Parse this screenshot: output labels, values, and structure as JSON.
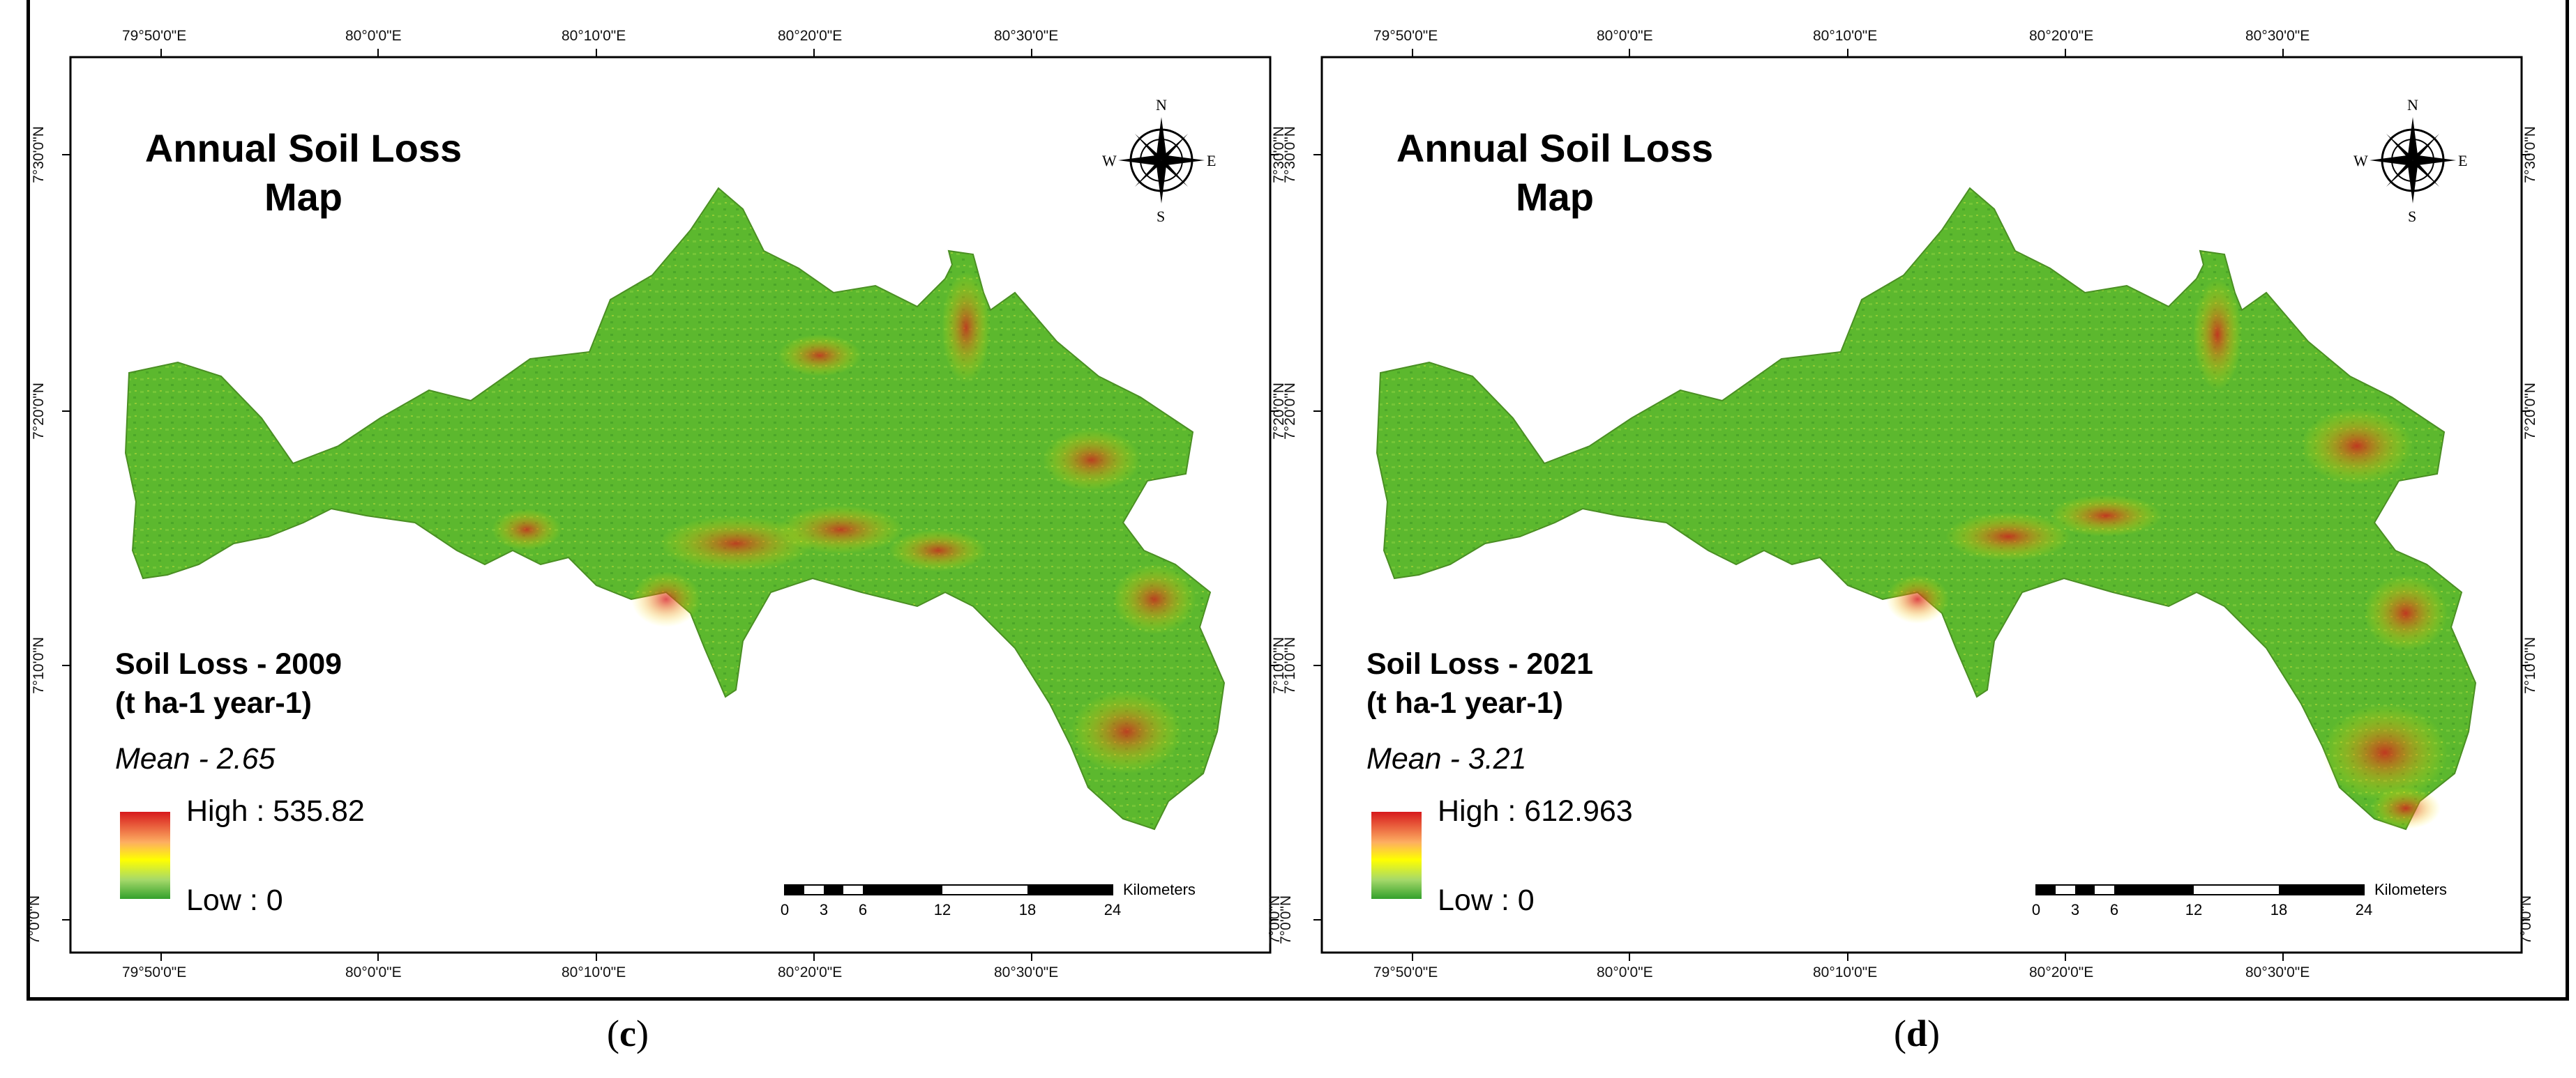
{
  "panels": [
    {
      "label": "c",
      "title_line1": "Annual Soil Loss",
      "title_line2": "Map",
      "legend_title_line1": "Soil Loss - 2009",
      "legend_title_line2": "(t ha-1 year-1)",
      "mean": "Mean - 2.65",
      "high": "High : 535.82",
      "low": "Low : 0"
    },
    {
      "label": "d",
      "title_line1": "Annual Soil Loss",
      "title_line2": "Map",
      "legend_title_line1": "Soil Loss - 2021",
      "legend_title_line2": "(t ha-1 year-1)",
      "mean": "Mean - 3.21",
      "high": "High : 612.963",
      "low": "Low : 0"
    }
  ],
  "longitudes": [
    "79°50'0\"E",
    "80°0'0\"E",
    "80°10'0\"E",
    "80°20'0\"E",
    "80°30'0\"E"
  ],
  "latitudes": [
    "7°30'0\"N",
    "7°20'0\"N",
    "7°10'0\"N",
    "7°0'0\"N"
  ],
  "scale": {
    "units": "Kilometers",
    "ticks": [
      "0",
      "3",
      "6",
      "12",
      "18",
      "24"
    ]
  },
  "compass": {
    "n": "N",
    "s": "S",
    "e": "E",
    "w": "W"
  },
  "colors": {
    "high": "#d7191c",
    "mid": "#ffff00",
    "low": "#33a02c",
    "terrain": "#5cb82e"
  }
}
